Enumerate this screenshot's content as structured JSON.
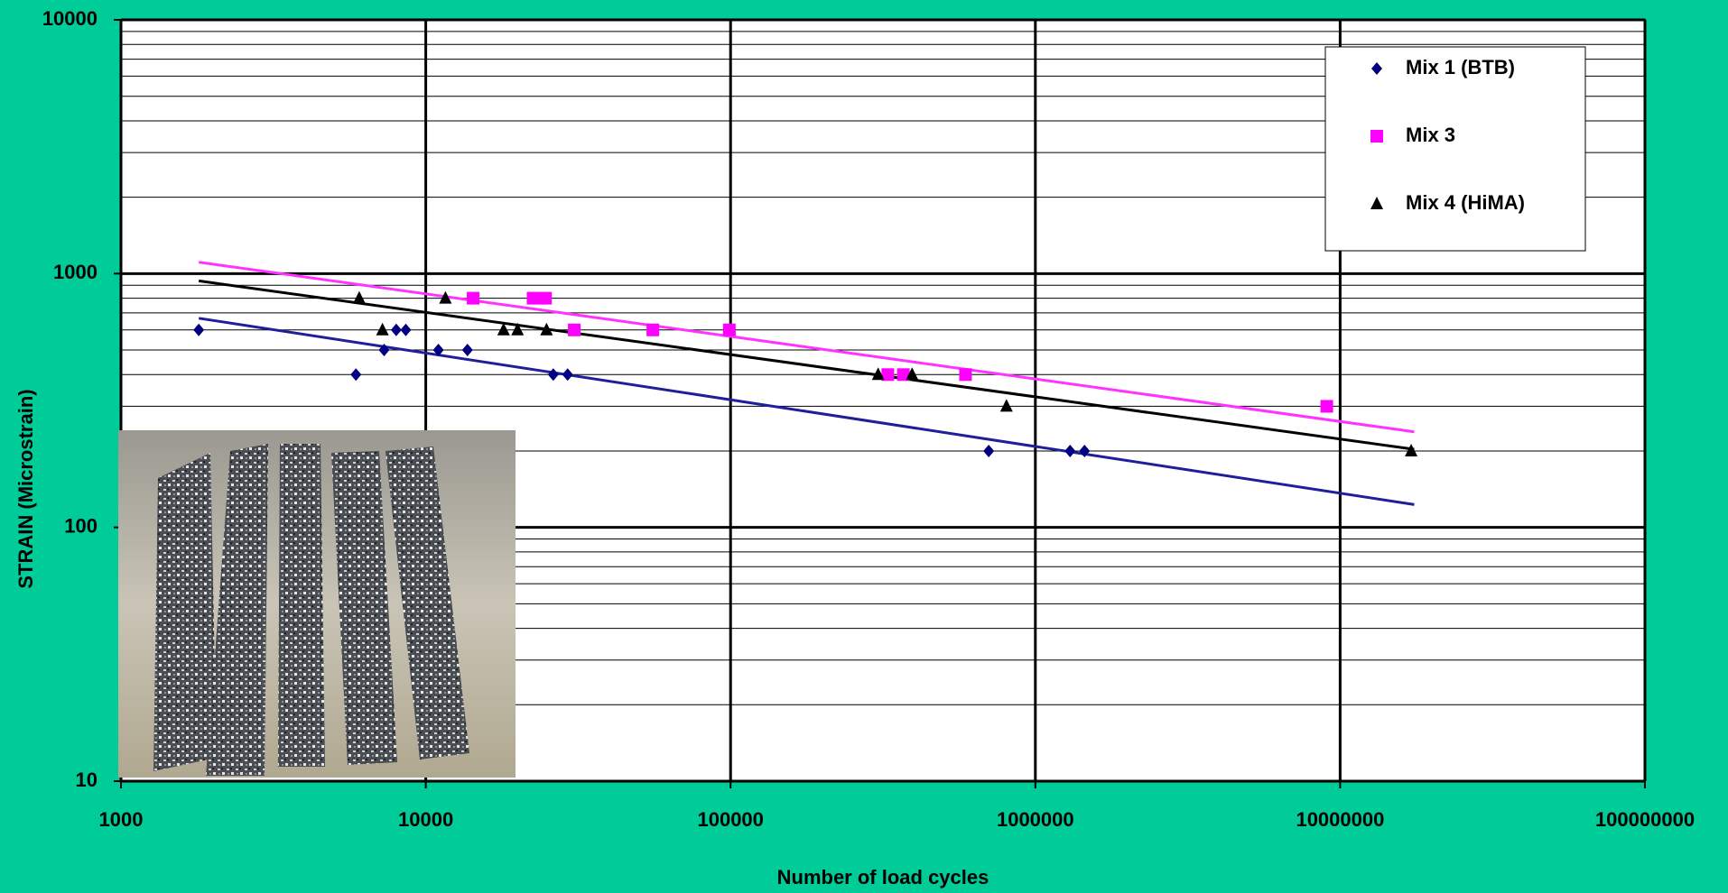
{
  "chart_data": {
    "type": "scatter",
    "x_label": "Number of load cycles",
    "y_label": "STRAIN (Microstrain)",
    "xscale": "log",
    "yscale": "log",
    "xlim": [
      1000,
      100000000
    ],
    "xticks": [
      1000,
      10000,
      100000,
      1000000,
      10000000,
      100000000
    ],
    "ylim": [
      10,
      10000
    ],
    "yticks": [
      10,
      100,
      1000,
      10000
    ],
    "grid": true,
    "minor_grid_y": true,
    "legend": "upper right",
    "series": [
      {
        "name": "Mix 1 (BTB)",
        "color": "#000080",
        "marker": "diamond",
        "x": [
          1800,
          5900,
          7300,
          8000,
          8600,
          11000,
          13700,
          26200,
          29200,
          703000,
          1300000,
          1450000
        ],
        "values": [
          600,
          400,
          500,
          600,
          600,
          500,
          500,
          400,
          400,
          200,
          200,
          200
        ],
        "trendline": {
          "color": "#1f1f99",
          "x": [
            1800,
            17500000
          ],
          "values": [
            667,
            123
          ]
        }
      },
      {
        "name": "Mix 3",
        "color": "#ff00ff",
        "marker": "square",
        "x": [
          14300,
          22500,
          24700,
          30700,
          55600,
          99100,
          328000,
          369000,
          590000,
          9040000
        ],
        "values": [
          800,
          800,
          800,
          600,
          600,
          600,
          400,
          400,
          400,
          300
        ],
        "trendline": {
          "color": "#ff33ff",
          "x": [
            1800,
            17500000
          ],
          "values": [
            1109,
            238
          ]
        }
      },
      {
        "name": "Mix 4 (HiMA)",
        "color": "#000000",
        "marker": "triangle",
        "x": [
          6050,
          7210,
          11600,
          18000,
          20000,
          24900,
          305000,
          394000,
          804000,
          17100000
        ],
        "values": [
          800,
          600,
          800,
          600,
          600,
          600,
          400,
          400,
          300,
          200
        ],
        "trendline": {
          "color": "#000000",
          "x": [
            1800,
            17500000
          ],
          "values": [
            936,
            203
          ]
        }
      }
    ]
  }
}
